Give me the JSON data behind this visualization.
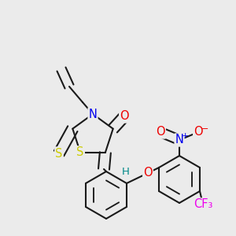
{
  "bg_color": "#ebebeb",
  "bond_color": "#1a1a1a",
  "bond_width": 1.5,
  "dbo": 0.018,
  "atom_colors": {
    "N": "#0000ee",
    "S": "#cccc00",
    "O": "#ee0000",
    "F": "#ee00ee",
    "H": "#008888",
    "C": "#1a1a1a"
  },
  "fs": 10.5
}
